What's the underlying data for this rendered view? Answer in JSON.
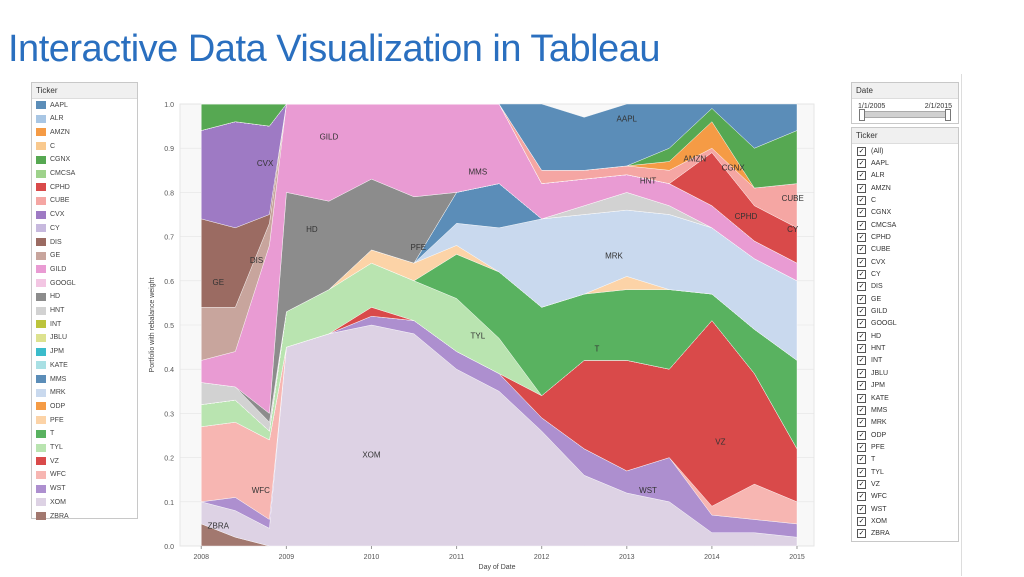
{
  "slide": {
    "title": "Interactive Data Visualization in Tableau"
  },
  "legend": {
    "header": "Ticker",
    "items": [
      {
        "label": "AAPL",
        "color": "#5b8db8"
      },
      {
        "label": "ALR",
        "color": "#a8c6e4"
      },
      {
        "label": "AMZN",
        "color": "#f59b45"
      },
      {
        "label": "C",
        "color": "#f9c98e"
      },
      {
        "label": "CGNX",
        "color": "#56a852"
      },
      {
        "label": "CMCSA",
        "color": "#9ed28b"
      },
      {
        "label": "CPHD",
        "color": "#d94a4a"
      },
      {
        "label": "CUBE",
        "color": "#f5a6a3"
      },
      {
        "label": "CVX",
        "color": "#9e7ac4"
      },
      {
        "label": "CY",
        "color": "#c7b9de"
      },
      {
        "label": "DIS",
        "color": "#9b6b62"
      },
      {
        "label": "GE",
        "color": "#c8a59d"
      },
      {
        "label": "GILD",
        "color": "#e99bd3"
      },
      {
        "label": "GOOGL",
        "color": "#f3c6e3"
      },
      {
        "label": "HD",
        "color": "#8c8c8c"
      },
      {
        "label": "HNT",
        "color": "#d2d2d2"
      },
      {
        "label": "INT",
        "color": "#bcc43c"
      },
      {
        "label": "JBLU",
        "color": "#dde28f"
      },
      {
        "label": "JPM",
        "color": "#3bbccb"
      },
      {
        "label": "KATE",
        "color": "#a9e0e4"
      },
      {
        "label": "MMS",
        "color": "#5b8db8"
      },
      {
        "label": "MRK",
        "color": "#c9d9ee"
      },
      {
        "label": "ODP",
        "color": "#f59b45"
      },
      {
        "label": "PFE",
        "color": "#fcd3a7"
      },
      {
        "label": "T",
        "color": "#59b260"
      },
      {
        "label": "TYL",
        "color": "#b9e4b0"
      },
      {
        "label": "VZ",
        "color": "#d94a4a"
      },
      {
        "label": "WFC",
        "color": "#f7b6b2"
      },
      {
        "label": "WST",
        "color": "#ad8fcf"
      },
      {
        "label": "XOM",
        "color": "#ddd2e4"
      },
      {
        "label": "ZBRA",
        "color": "#a2786f"
      }
    ]
  },
  "date_filter": {
    "header": "Date",
    "start": "1/1/2005",
    "end": "2/1/2015"
  },
  "ticker_filter": {
    "header": "Ticker",
    "items": [
      "(All)",
      "AAPL",
      "ALR",
      "AMZN",
      "C",
      "CGNX",
      "CMCSA",
      "CPHD",
      "CUBE",
      "CVX",
      "CY",
      "DIS",
      "GE",
      "GILD",
      "GOOGL",
      "HD",
      "HNT",
      "INT",
      "JBLU",
      "JPM",
      "KATE",
      "MMS",
      "MRK",
      "ODP",
      "PFE",
      "T",
      "TYL",
      "VZ",
      "WFC",
      "WST",
      "XOM",
      "ZBRA"
    ]
  },
  "chart_data": {
    "type": "area",
    "xlabel": "Day of Date",
    "ylabel": "Portfolio with rebalance weight",
    "xlim": [
      2007.75,
      2015.2
    ],
    "ylim": [
      0,
      1.0
    ],
    "x_ticks": [
      "2008",
      "2009",
      "2010",
      "2011",
      "2012",
      "2013",
      "2014",
      "2015"
    ],
    "x_tick_values": [
      2008,
      2009,
      2010,
      2011,
      2012,
      2013,
      2014,
      2015
    ],
    "y_ticks": [
      "0.0",
      "0.1",
      "0.2",
      "0.3",
      "0.4",
      "0.5",
      "0.6",
      "0.7",
      "0.8",
      "0.9",
      "1.0"
    ],
    "y_tick_values": [
      0,
      0.1,
      0.2,
      0.3,
      0.4,
      0.5,
      0.6,
      0.7,
      0.8,
      0.9,
      1.0
    ],
    "x": [
      2008.0,
      2008.4,
      2008.8,
      2009.0,
      2009.5,
      2010.0,
      2010.5,
      2011.0,
      2011.5,
      2012.0,
      2012.5,
      2013.0,
      2013.5,
      2014.0,
      2014.5,
      2015.0
    ],
    "series": [
      {
        "name": "ZBRA",
        "color": "#a2786f",
        "values": [
          0.05,
          0.02,
          0,
          0,
          0,
          0,
          0,
          0,
          0,
          0,
          0,
          0,
          0,
          0,
          0,
          0
        ]
      },
      {
        "name": "XOM",
        "color": "#ddd2e4",
        "values": [
          0.05,
          0.06,
          0.04,
          0.45,
          0.48,
          0.5,
          0.48,
          0.4,
          0.35,
          0.26,
          0.16,
          0.12,
          0.1,
          0.03,
          0.03,
          0.02
        ]
      },
      {
        "name": "WST",
        "color": "#ad8fcf",
        "values": [
          0,
          0.03,
          0.02,
          0,
          0,
          0.02,
          0.03,
          0.04,
          0.04,
          0.03,
          0.06,
          0.05,
          0.1,
          0.04,
          0.03,
          0.03
        ]
      },
      {
        "name": "WFC",
        "color": "#f7b6b2",
        "values": [
          0.17,
          0.17,
          0.18,
          0,
          0,
          0,
          0,
          0,
          0,
          0,
          0,
          0,
          0,
          0.02,
          0.08,
          0.05
        ]
      },
      {
        "name": "VZ",
        "color": "#d94a4a",
        "values": [
          0,
          0,
          0,
          0,
          0,
          0.02,
          0,
          0,
          0,
          0.05,
          0.2,
          0.25,
          0.2,
          0.42,
          0.25,
          0.12
        ]
      },
      {
        "name": "TYL",
        "color": "#b9e4b0",
        "values": [
          0.05,
          0.05,
          0.02,
          0.08,
          0.1,
          0.1,
          0.09,
          0.12,
          0.08,
          0,
          0,
          0,
          0,
          0,
          0,
          0
        ]
      },
      {
        "name": "T",
        "color": "#59b260",
        "values": [
          0,
          0,
          0,
          0,
          0,
          0,
          0,
          0.1,
          0.15,
          0.2,
          0.15,
          0.16,
          0.18,
          0.06,
          0.1,
          0.2
        ]
      },
      {
        "name": "PFE",
        "color": "#fcd3a7",
        "values": [
          0,
          0,
          0,
          0,
          0,
          0.03,
          0.04,
          0.02,
          0,
          0,
          0,
          0.03,
          0,
          0,
          0,
          0
        ]
      },
      {
        "name": "MRK",
        "color": "#c9d9ee",
        "values": [
          0,
          0,
          0,
          0,
          0,
          0,
          0,
          0.05,
          0.1,
          0.2,
          0.18,
          0.15,
          0.17,
          0.15,
          0.16,
          0.18
        ]
      },
      {
        "name": "MMS",
        "color": "#5b8db8",
        "values": [
          0,
          0,
          0,
          0,
          0,
          0,
          0,
          0.07,
          0.1,
          0,
          0,
          0,
          0,
          0,
          0,
          0
        ]
      },
      {
        "name": "HNT",
        "color": "#d2d2d2",
        "values": [
          0.05,
          0.03,
          0.02,
          0,
          0,
          0,
          0,
          0,
          0,
          0,
          0.02,
          0.04,
          0.02,
          0,
          0,
          0
        ]
      },
      {
        "name": "HD",
        "color": "#8c8c8c",
        "values": [
          0,
          0,
          0.02,
          0.27,
          0.2,
          0.16,
          0.15,
          0,
          0,
          0,
          0,
          0,
          0,
          0,
          0,
          0
        ]
      },
      {
        "name": "GILD",
        "color": "#e99bd3",
        "values": [
          0.05,
          0.08,
          0.38,
          0.2,
          0.22,
          0.19,
          0.21,
          0.2,
          0.18,
          0.08,
          0.06,
          0.04,
          0.05,
          0.05,
          0.04,
          0.04
        ]
      },
      {
        "name": "GE",
        "color": "#c8a59d",
        "values": [
          0.12,
          0.1,
          0.05,
          0,
          0,
          0,
          0,
          0,
          0,
          0,
          0,
          0,
          0,
          0,
          0,
          0
        ]
      },
      {
        "name": "DIS",
        "color": "#9b6b62",
        "values": [
          0.2,
          0.18,
          0.02,
          0,
          0,
          0,
          0,
          0,
          0,
          0,
          0,
          0,
          0,
          0,
          0,
          0
        ]
      },
      {
        "name": "CVX",
        "color": "#9e7ac4",
        "values": [
          0.2,
          0.24,
          0.2,
          0,
          0,
          0,
          0,
          0,
          0,
          0,
          0,
          0,
          0,
          0,
          0,
          0
        ]
      },
      {
        "name": "CPHD",
        "color": "#d94a4a",
        "values": [
          0,
          0,
          0,
          0,
          0,
          0,
          0,
          0,
          0,
          0,
          0,
          0,
          0,
          0.12,
          0.08,
          0.08
        ]
      },
      {
        "name": "CUBE",
        "color": "#f5a6a3",
        "values": [
          0,
          0,
          0,
          0,
          0,
          0,
          0,
          0,
          0,
          0.03,
          0.02,
          0.02,
          0.03,
          0.01,
          0.04,
          0.1
        ]
      },
      {
        "name": "AMZN",
        "color": "#f59b45",
        "values": [
          0,
          0,
          0,
          0,
          0,
          0,
          0,
          0,
          0,
          0,
          0,
          0,
          0.02,
          0.06,
          0,
          0
        ]
      },
      {
        "name": "CGNX",
        "color": "#56a852",
        "values": [
          0.06,
          0.04,
          0.05,
          0,
          0,
          0,
          0,
          0,
          0,
          0,
          0,
          0,
          0.03,
          0.03,
          0.09,
          0.12
        ]
      },
      {
        "name": "AAPL",
        "color": "#5b8db8",
        "values": [
          0,
          0,
          0,
          0,
          0,
          0,
          0,
          0,
          0,
          0.15,
          0.12,
          0.14,
          0.1,
          0.03,
          0.1,
          0.06
        ]
      }
    ],
    "annotations": [
      {
        "text": "ZBRA",
        "x": 2008.2,
        "y": 0.04
      },
      {
        "text": "WFC",
        "x": 2008.7,
        "y": 0.12
      },
      {
        "text": "GE",
        "x": 2008.2,
        "y": 0.59
      },
      {
        "text": "DIS",
        "x": 2008.65,
        "y": 0.64
      },
      {
        "text": "CVX",
        "x": 2008.75,
        "y": 0.86
      },
      {
        "text": "GILD",
        "x": 2009.5,
        "y": 0.92
      },
      {
        "text": "HD",
        "x": 2009.3,
        "y": 0.71
      },
      {
        "text": "PFE",
        "x": 2010.55,
        "y": 0.67
      },
      {
        "text": "XOM",
        "x": 2010.0,
        "y": 0.2
      },
      {
        "text": "TYL",
        "x": 2011.25,
        "y": 0.47
      },
      {
        "text": "MMS",
        "x": 2011.25,
        "y": 0.84
      },
      {
        "text": "AAPL",
        "x": 2013.0,
        "y": 0.96
      },
      {
        "text": "AMZN",
        "x": 2013.8,
        "y": 0.87
      },
      {
        "text": "CGNX",
        "x": 2014.25,
        "y": 0.85
      },
      {
        "text": "HNT",
        "x": 2013.25,
        "y": 0.82
      },
      {
        "text": "MRK",
        "x": 2012.85,
        "y": 0.65
      },
      {
        "text": "T",
        "x": 2012.65,
        "y": 0.44
      },
      {
        "text": "CPHD",
        "x": 2014.4,
        "y": 0.74
      },
      {
        "text": "CUBE",
        "x": 2014.95,
        "y": 0.78
      },
      {
        "text": "CY",
        "x": 2014.95,
        "y": 0.71
      },
      {
        "text": "VZ",
        "x": 2014.1,
        "y": 0.23
      },
      {
        "text": "WST",
        "x": 2013.25,
        "y": 0.12
      }
    ]
  }
}
